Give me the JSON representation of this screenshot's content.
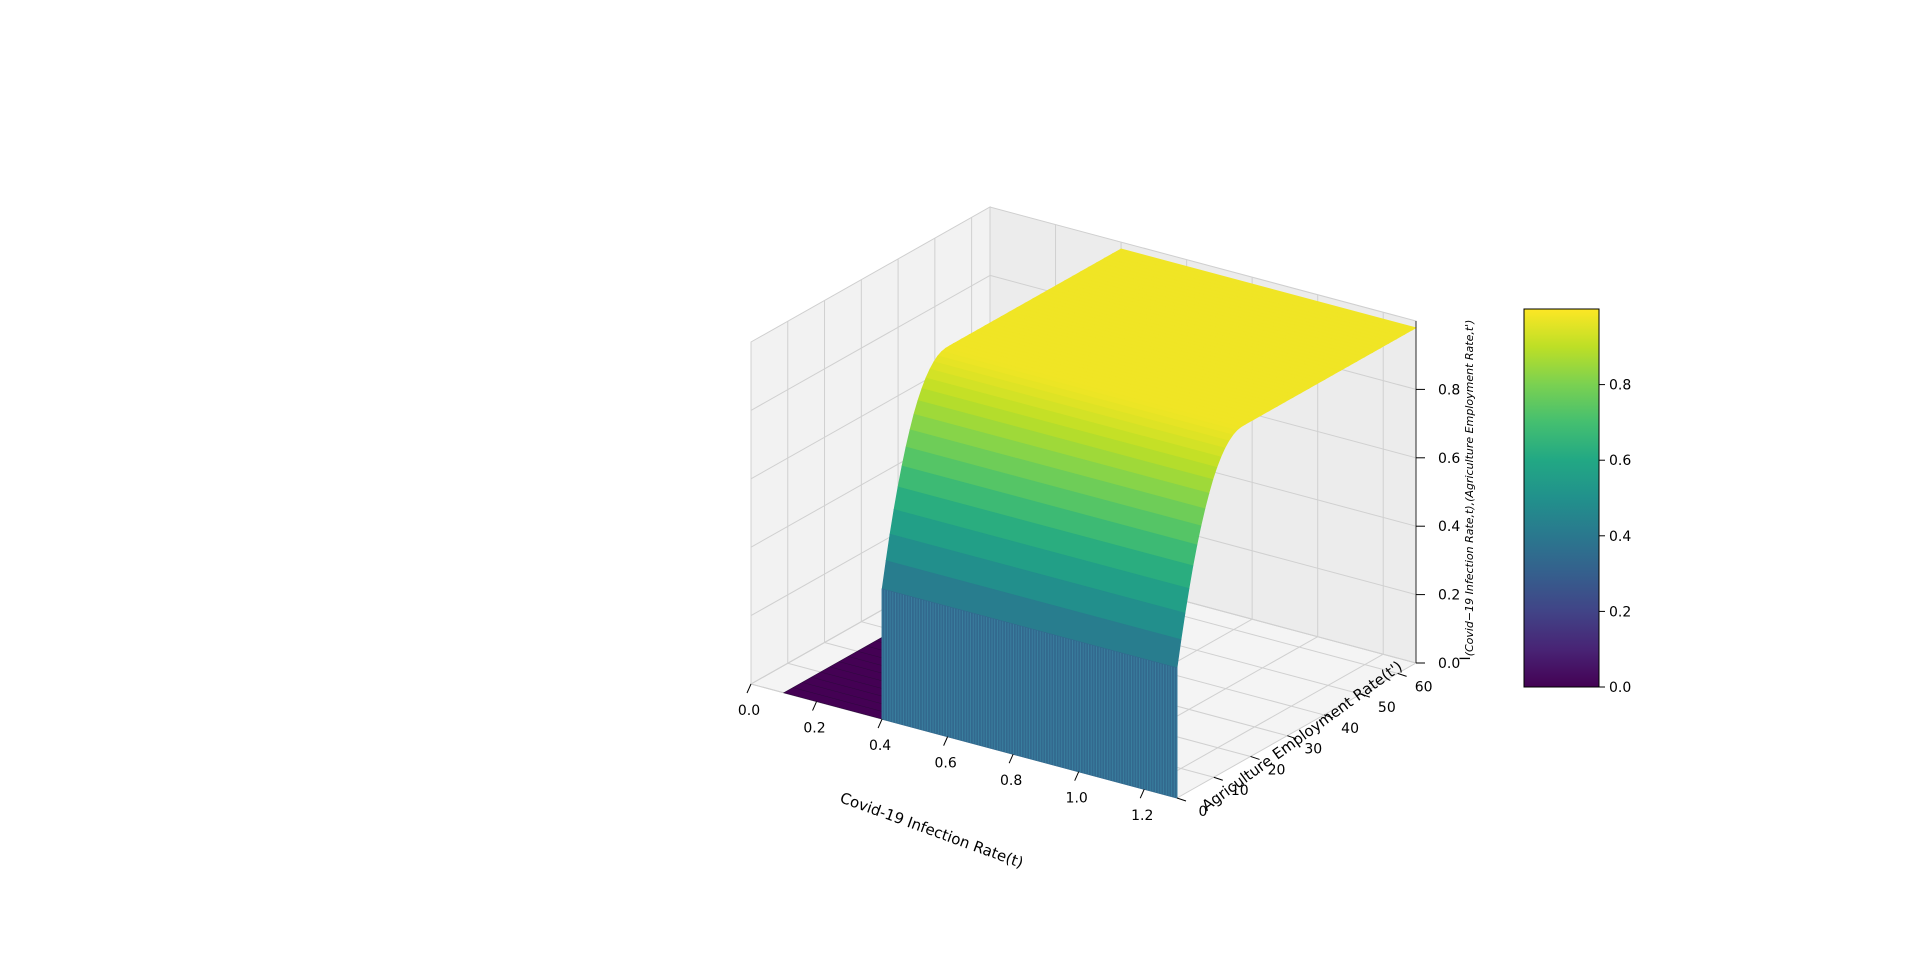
{
  "chart_data": {
    "type": "surface3d",
    "title": "",
    "xlabel": "Covid-19 Infection Rate(t)",
    "ylabel": "Agriculture Employment Rate(t')",
    "zlabel": {
      "main": "I",
      "subscript": "(Covid−19 Infection Rate,t),(Agriculture Employment Rate,t')"
    },
    "xlim": [
      0,
      1.3
    ],
    "ylim": [
      0,
      65
    ],
    "zlim": [
      0,
      1.0
    ],
    "x_ticks": [
      "0.0",
      "0.2",
      "0.4",
      "0.6",
      "0.8",
      "1.0",
      "1.2"
    ],
    "y_ticks": [
      "0",
      "10",
      "20",
      "30",
      "40",
      "50",
      "60"
    ],
    "z_ticks": [
      "0.0",
      "0.2",
      "0.4",
      "0.6",
      "0.8"
    ],
    "colorbar_ticks": [
      "0.0",
      "0.2",
      "0.4",
      "0.6",
      "0.8"
    ],
    "colorbar_range": [
      0,
      1.0
    ],
    "colormap": "viridis",
    "surface": {
      "x_range": [
        0.1,
        1.3
      ],
      "y_range": [
        0,
        65
      ],
      "step_x": 0.4,
      "base_value": 0.0,
      "step_value": 0.38,
      "plateau_value": 0.98,
      "ramp_y_end": 18
    },
    "colors": {
      "low": "#440154",
      "step": "#32698e",
      "high": "#fde725",
      "pane_back": "#f2f2f2",
      "pane_floor": "#f4f4f4",
      "grid": "#d0d0d0"
    },
    "grid": true
  }
}
